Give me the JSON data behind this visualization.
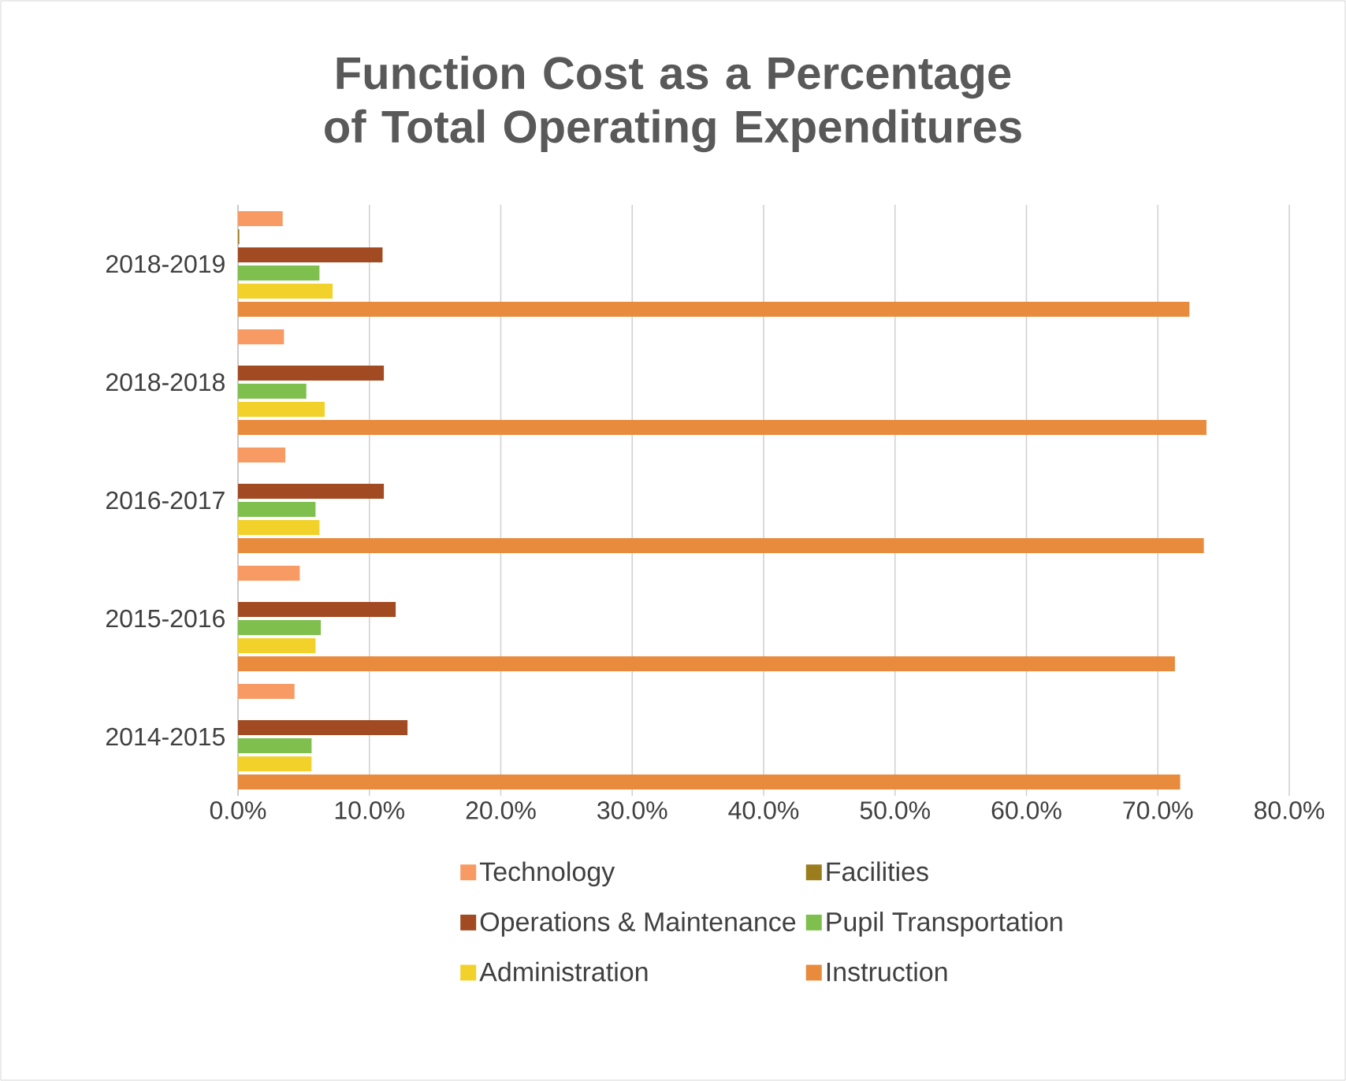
{
  "chart_data": {
    "type": "bar",
    "orientation": "horizontal",
    "title": "Function Cost as a Percentage of Total Operating Expenditures",
    "categories": [
      "2018-2019",
      "2018-2018",
      "2016-2017",
      "2015-2016",
      "2014-2015"
    ],
    "series": [
      {
        "name": "Technology",
        "color": "#f79a63",
        "values": [
          3.4,
          3.5,
          3.6,
          4.7,
          4.3
        ]
      },
      {
        "name": "Facilities",
        "color": "#9b7d1e",
        "values": [
          0.1,
          0,
          0,
          0,
          0
        ]
      },
      {
        "name": "Operations & Maintenance",
        "color": "#a24a22",
        "values": [
          11.0,
          11.1,
          11.1,
          12.0,
          12.9
        ]
      },
      {
        "name": "Pupil Transportation",
        "color": "#7fbf4d",
        "values": [
          6.2,
          5.2,
          5.9,
          6.3,
          5.6
        ]
      },
      {
        "name": "Administration",
        "color": "#f2d22a",
        "values": [
          7.2,
          6.6,
          6.2,
          5.9,
          5.6
        ]
      },
      {
        "name": "Instruction",
        "color": "#e98b3c",
        "values": [
          72.4,
          73.7,
          73.5,
          71.3,
          71.7
        ]
      }
    ],
    "xlim": [
      0,
      80
    ],
    "xticks": [
      {
        "value": 0,
        "label": "0.0%"
      },
      {
        "value": 10,
        "label": "10.0%"
      },
      {
        "value": 20,
        "label": "20.0%"
      },
      {
        "value": 30,
        "label": "30.0%"
      },
      {
        "value": 40,
        "label": "40.0%"
      },
      {
        "value": 50,
        "label": "50.0%"
      },
      {
        "value": 60,
        "label": "60.0%"
      },
      {
        "value": 70,
        "label": "70.0%"
      },
      {
        "value": 80,
        "label": "80.0%"
      }
    ],
    "grid": "x",
    "legend": "bottom"
  }
}
